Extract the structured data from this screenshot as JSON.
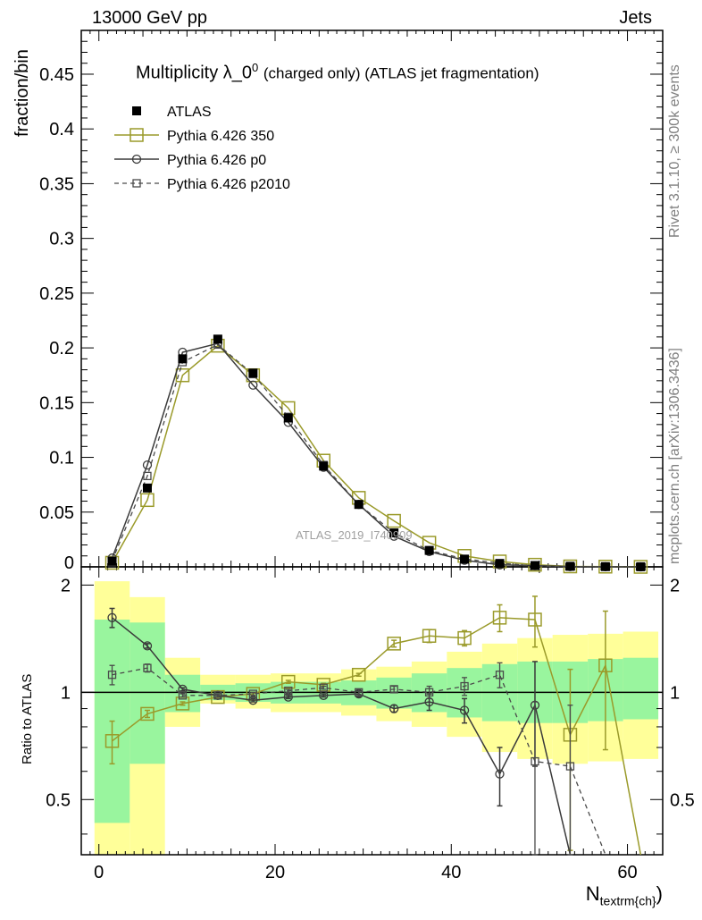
{
  "header": {
    "left_label": "13000 GeV pp",
    "right_label": "Jets"
  },
  "main_plot": {
    "title": "Multiplicity λ_0",
    "title_superscript": "0",
    "title_suffix": "(charged only) (ATLAS jet fragmentation)",
    "ylabel": "fraction/bin",
    "watermark": "ATLAS_2019_I740909"
  },
  "ratio_plot": {
    "ylabel": "Ratio to ATLAS"
  },
  "xaxis": {
    "label_main": "N",
    "label_sub": "textrm{ch}",
    "label_close": ")"
  },
  "side_labels": {
    "rivet": "Rivet 3.1.10, ≥ 300k events",
    "mcplots": "mcplots.cern.ch [arXiv:1306.3436]"
  },
  "colors": {
    "data": "#000000",
    "p350": "#9a9a2a",
    "p0": "#3a3a3a",
    "p2010": "#4a4a4a",
    "band_inner": "#99f59e",
    "band_outer": "#ffff99"
  },
  "chart_data": [
    {
      "type": "line",
      "title": "Multiplicity λ_0^0 (charged only) (ATLAS jet fragmentation)",
      "xlabel": "N_textrm{ch}",
      "ylabel": "fraction/bin",
      "xlim": [
        -2,
        64
      ],
      "ylim": [
        0,
        0.49
      ],
      "yticks": [
        0,
        0.05,
        0.1,
        0.15,
        0.2,
        0.25,
        0.3,
        0.35,
        0.4,
        0.45
      ],
      "ytick_labels": [
        "0",
        "0.05",
        "0.1",
        "0.15",
        "0.2",
        "0.25",
        "0.3",
        "0.35",
        "0.4",
        "0.45"
      ],
      "legend_position": "top-left",
      "x": [
        1.5,
        5.5,
        9.5,
        13.5,
        17.5,
        21.5,
        25.5,
        29.5,
        33.5,
        37.5,
        41.5,
        45.5,
        49.5,
        53.5,
        57.5,
        61.5
      ],
      "series": [
        {
          "name": "ATLAS",
          "style": "data",
          "values": [
            0.005,
            0.072,
            0.19,
            0.208,
            0.177,
            0.136,
            0.092,
            0.057,
            0.031,
            0.015,
            0.007,
            0.003,
            0.0012,
            0.0005,
            0.0002,
            0.0001
          ]
        },
        {
          "name": "Pythia 6.426 350",
          "style": "p350",
          "values": [
            0.0037,
            0.061,
            0.175,
            0.202,
            0.175,
            0.145,
            0.097,
            0.063,
            0.042,
            0.022,
            0.01,
            0.0049,
            0.0019,
            0.0004,
            0.0002,
            0.0
          ]
        },
        {
          "name": "Pythia 6.426 p0",
          "style": "p0",
          "values": [
            0.008,
            0.093,
            0.196,
            0.204,
            0.166,
            0.132,
            0.091,
            0.057,
            0.028,
            0.014,
            0.006,
            0.0018,
            0.0011,
            0.0002,
            0.0001,
            0.0
          ]
        },
        {
          "name": "Pythia 6.426 p2010",
          "style": "p2010",
          "values": [
            0.0056,
            0.083,
            0.187,
            0.203,
            0.176,
            0.137,
            0.093,
            0.057,
            0.031,
            0.015,
            0.0073,
            0.0034,
            0.0008,
            0.0003,
            0.0001,
            0.0
          ]
        }
      ]
    },
    {
      "type": "line",
      "title": "",
      "xlabel": "N_textrm{ch}",
      "ylabel": "Ratio to ATLAS",
      "xlim": [
        -2,
        64
      ],
      "ylim": [
        0.35,
        2.25
      ],
      "yticks": [
        0.5,
        1,
        2
      ],
      "ytick_labels": [
        "0.5",
        "1",
        "2"
      ],
      "xticks": [
        0,
        20,
        40,
        60
      ],
      "xtick_labels": [
        "0",
        "20",
        "40",
        "60"
      ],
      "bins": [
        [
          -0.5,
          3.5
        ],
        [
          3.5,
          7.5
        ],
        [
          7.5,
          11.5
        ],
        [
          11.5,
          15.5
        ],
        [
          15.5,
          19.5
        ],
        [
          19.5,
          23.5
        ],
        [
          23.5,
          27.5
        ],
        [
          27.5,
          31.5
        ],
        [
          31.5,
          35.5
        ],
        [
          35.5,
          39.5
        ],
        [
          39.5,
          43.5
        ],
        [
          43.5,
          47.5
        ],
        [
          47.5,
          51.5
        ],
        [
          51.5,
          55.5
        ],
        [
          55.5,
          59.5
        ],
        [
          59.5,
          63.5
        ]
      ],
      "band_inner": [
        [
          0.43,
          1.6
        ],
        [
          0.63,
          1.57
        ],
        [
          0.88,
          1.12
        ],
        [
          0.95,
          1.05
        ],
        [
          0.94,
          1.06
        ],
        [
          0.93,
          1.07
        ],
        [
          0.93,
          1.07
        ],
        [
          0.92,
          1.08
        ],
        [
          0.9,
          1.1
        ],
        [
          0.88,
          1.13
        ],
        [
          0.85,
          1.17
        ],
        [
          0.83,
          1.2
        ],
        [
          0.82,
          1.22
        ],
        [
          0.82,
          1.22
        ],
        [
          0.83,
          1.24
        ],
        [
          0.84,
          1.25
        ]
      ],
      "band_outer": [
        [
          0.2,
          2.05
        ],
        [
          0.2,
          1.85
        ],
        [
          0.8,
          1.25
        ],
        [
          0.93,
          1.12
        ],
        [
          0.9,
          1.12
        ],
        [
          0.88,
          1.13
        ],
        [
          0.88,
          1.13
        ],
        [
          0.86,
          1.16
        ],
        [
          0.83,
          1.18
        ],
        [
          0.8,
          1.22
        ],
        [
          0.75,
          1.3
        ],
        [
          0.68,
          1.37
        ],
        [
          0.65,
          1.42
        ],
        [
          0.63,
          1.45
        ],
        [
          0.64,
          1.46
        ],
        [
          0.65,
          1.48
        ]
      ],
      "x": [
        1.5,
        5.5,
        9.5,
        13.5,
        17.5,
        21.5,
        25.5,
        29.5,
        33.5,
        37.5,
        41.5,
        45.5,
        49.5,
        53.5,
        57.5,
        61.5
      ],
      "series": [
        {
          "name": "Pythia 6.426 350",
          "style": "p350",
          "values": [
            0.73,
            0.87,
            0.93,
            0.97,
            0.99,
            1.07,
            1.05,
            1.12,
            1.37,
            1.44,
            1.42,
            1.62,
            1.6,
            0.76,
            1.19,
            0.15
          ],
          "errors": [
            0.1,
            0.02,
            0.01,
            0.01,
            0.01,
            0.01,
            0.01,
            0.01,
            0.03,
            0.06,
            0.07,
            0.14,
            0.26,
            0.4,
            0.5,
            0.0
          ]
        },
        {
          "name": "Pythia 6.426 p0",
          "style": "p0",
          "values": [
            1.62,
            1.35,
            1.02,
            0.98,
            0.95,
            0.97,
            0.98,
            0.99,
            0.9,
            0.94,
            0.89,
            0.59,
            0.92,
            0.15,
            null,
            null
          ],
          "errors": [
            0.1,
            0.02,
            0.01,
            0.01,
            0.01,
            0.01,
            0.01,
            0.02,
            0.02,
            0.05,
            0.07,
            0.11,
            0.3,
            0.0,
            null,
            null
          ]
        },
        {
          "name": "Pythia 6.426 p2010",
          "style": "p2010",
          "values": [
            1.12,
            1.17,
            0.98,
            0.98,
            0.99,
            1.01,
            1.03,
            1.0,
            1.02,
            1.0,
            1.04,
            1.12,
            0.64,
            0.62,
            0.15,
            null
          ],
          "errors": [
            0.07,
            0.03,
            0.01,
            0.01,
            0.01,
            0.01,
            0.01,
            0.02,
            0.02,
            0.04,
            0.06,
            0.09,
            0.3,
            0.3,
            0.0,
            null
          ]
        }
      ]
    }
  ]
}
